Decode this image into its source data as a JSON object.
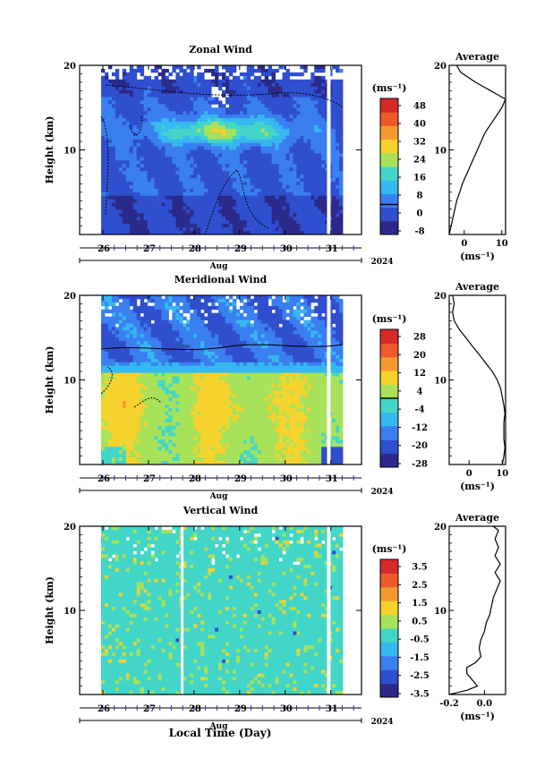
{
  "chart_data": [
    {
      "type": "heatmap",
      "title": "Zonal Wind",
      "ylabel": "Height (km)",
      "xlabel": "Aug",
      "year": "2024",
      "ylim": [
        0,
        20
      ],
      "y_ticks": [
        "20",
        "10"
      ],
      "x_ticks": [
        "26",
        "27",
        "28",
        "29",
        "30",
        "31"
      ],
      "colorbar": {
        "unit": "(ms⁻¹)",
        "labels": [
          "48",
          "40",
          "32",
          "24",
          "16",
          "8",
          "0",
          "-8"
        ],
        "range": [
          -8,
          48
        ]
      },
      "average": {
        "title": "Average",
        "xlabel": "(ms⁻¹)",
        "x_ticks": [
          "0",
          "10"
        ],
        "xlim": [
          -4,
          11
        ],
        "y_ticks": [
          "20",
          "10"
        ],
        "profile": [
          [
            -4,
            0
          ],
          [
            -3.5,
            1
          ],
          [
            -3,
            2
          ],
          [
            -2.5,
            3
          ],
          [
            -2,
            4
          ],
          [
            -1.2,
            5
          ],
          [
            -0.5,
            6
          ],
          [
            0.5,
            7
          ],
          [
            1.5,
            8
          ],
          [
            2.5,
            9
          ],
          [
            3.5,
            10
          ],
          [
            4.5,
            11
          ],
          [
            5.5,
            12
          ],
          [
            7,
            13
          ],
          [
            8.5,
            14
          ],
          [
            10,
            15
          ],
          [
            11,
            16
          ],
          [
            9,
            16.5
          ],
          [
            7,
            17
          ],
          [
            5,
            17.5
          ],
          [
            3,
            18
          ],
          [
            1,
            18.6
          ],
          [
            -1,
            19.2
          ],
          [
            -2,
            20
          ]
        ]
      }
    },
    {
      "type": "heatmap",
      "title": "Meridional Wind",
      "ylabel": "Height (km)",
      "xlabel": "Aug",
      "year": "2024",
      "ylim": [
        0,
        20
      ],
      "y_ticks": [
        "20",
        "10"
      ],
      "x_ticks": [
        "26",
        "27",
        "28",
        "29",
        "30",
        "31"
      ],
      "colorbar": {
        "unit": "(ms⁻¹)",
        "labels": [
          "28",
          "20",
          "12",
          "4",
          "-4",
          "-12",
          "-20",
          "-28"
        ],
        "range": [
          -32,
          32
        ]
      },
      "average": {
        "title": "Average",
        "xlabel": "(ms⁻¹)",
        "x_ticks": [
          "0",
          "10"
        ],
        "xlim": [
          -6,
          11
        ],
        "y_ticks": [
          "20",
          "10"
        ],
        "profile": [
          [
            10,
            0
          ],
          [
            10.5,
            1
          ],
          [
            10.8,
            2
          ],
          [
            10.5,
            3
          ],
          [
            10.5,
            4
          ],
          [
            10.5,
            5
          ],
          [
            10.8,
            6
          ],
          [
            10.5,
            7
          ],
          [
            10,
            8
          ],
          [
            9.5,
            9
          ],
          [
            8.5,
            10
          ],
          [
            7,
            11
          ],
          [
            5,
            12
          ],
          [
            3,
            13
          ],
          [
            1,
            14
          ],
          [
            -1,
            15
          ],
          [
            -3,
            16
          ],
          [
            -4.5,
            17
          ],
          [
            -5,
            18
          ],
          [
            -4.5,
            19
          ],
          [
            -5,
            20
          ]
        ]
      }
    },
    {
      "type": "heatmap",
      "title": "Vertical Wind",
      "ylabel": "Height (km)",
      "xlabel": "Aug",
      "year": "2024",
      "ylim": [
        0,
        20
      ],
      "y_ticks": [
        "20",
        "10"
      ],
      "x_ticks": [
        "26",
        "27",
        "28",
        "29",
        "30",
        "31"
      ],
      "colorbar": {
        "unit": "(ms⁻¹)",
        "labels": [
          "3.5",
          "2.5",
          "1.5",
          "0.5",
          "-0.5",
          "-1.5",
          "-2.5",
          "-3.5"
        ],
        "range": [
          -4,
          4
        ]
      },
      "average": {
        "title": "Average",
        "xlabel": "(ms⁻¹)",
        "x_ticks": [
          "-0.2",
          "0.0"
        ],
        "xlim": [
          -0.2,
          0.12
        ],
        "y_ticks": [
          "20",
          "10"
        ],
        "profile": [
          [
            -0.2,
            0
          ],
          [
            -0.1,
            0.5
          ],
          [
            -0.04,
            1
          ],
          [
            -0.06,
            1.5
          ],
          [
            -0.1,
            2.5
          ],
          [
            -0.1,
            3.2
          ],
          [
            -0.05,
            3.8
          ],
          [
            -0.02,
            4.5
          ],
          [
            -0.03,
            5.5
          ],
          [
            -0.02,
            6.5
          ],
          [
            0.0,
            7.5
          ],
          [
            0.01,
            8.5
          ],
          [
            0.03,
            9.5
          ],
          [
            0.04,
            10.5
          ],
          [
            0.05,
            11.5
          ],
          [
            0.07,
            12.5
          ],
          [
            0.09,
            13.5
          ],
          [
            0.06,
            14.5
          ],
          [
            0.09,
            15.5
          ],
          [
            0.06,
            16.5
          ],
          [
            0.08,
            17.5
          ],
          [
            0.06,
            18.5
          ],
          [
            0.08,
            19.5
          ],
          [
            0.05,
            20
          ]
        ]
      }
    }
  ],
  "footer": {
    "xlabel": "Local Time (Day)"
  },
  "colors": [
    "#2b2a8a",
    "#2f4fcf",
    "#3a7ff0",
    "#37b8f0",
    "#43d6c8",
    "#a8e25a",
    "#f5d22e",
    "#f59a30",
    "#ee5a2a",
    "#d42a2a"
  ]
}
